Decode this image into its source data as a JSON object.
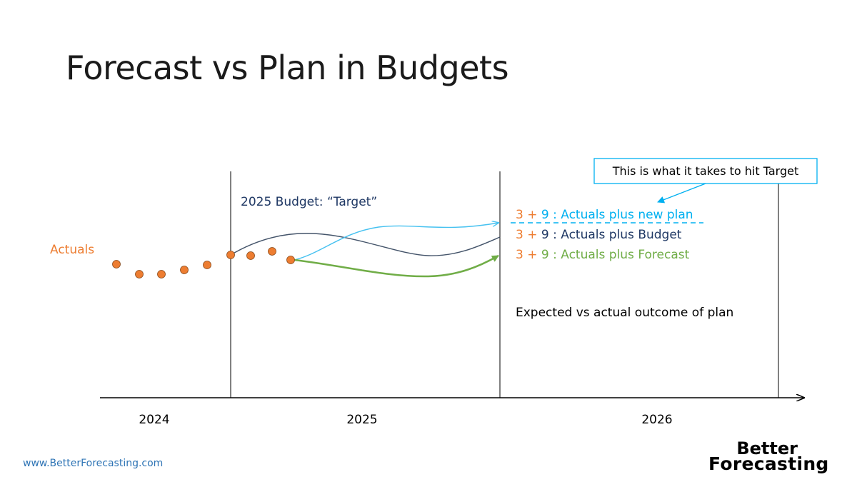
{
  "slide": {
    "title": "Forecast vs Plan in Budgets",
    "footer_url": "www.BetterForecasting.com",
    "logo_line1": "Better",
    "logo_line2": "Forecasting"
  },
  "labels": {
    "actuals": "Actuals",
    "budget_target": "2025 Budget: “Target”",
    "callout": "This is what it takes to hit Target",
    "expected_vs_actual": "Expected vs actual outcome of plan"
  },
  "scenarios": [
    {
      "prefix_a": "3",
      "plus": " + ",
      "prefix_b": "9",
      "text": " : Actuals plus new plan",
      "prefix_a_color": "#ed7d31",
      "prefix_b_color": "#00b0f0",
      "text_color": "#00b0f0"
    },
    {
      "prefix_a": "3",
      "plus": " + ",
      "prefix_b": "9",
      "text": " : Actuals plus Budget",
      "prefix_a_color": "#ed7d31",
      "prefix_b_color": "#1f3864",
      "text_color": "#1f3864"
    },
    {
      "prefix_a": "3",
      "plus": " + ",
      "prefix_b": "9",
      "text": " : Actuals plus Forecast",
      "prefix_a_color": "#ed7d31",
      "prefix_b_color": "#70ad47",
      "text_color": "#70ad47"
    }
  ],
  "years": [
    "2024",
    "2025",
    "2026"
  ],
  "colors": {
    "actuals": "#ed7d31",
    "new_plan": "#45c1f0",
    "budget": "#44546a",
    "forecast": "#70ad47",
    "axis": "#000000"
  }
}
